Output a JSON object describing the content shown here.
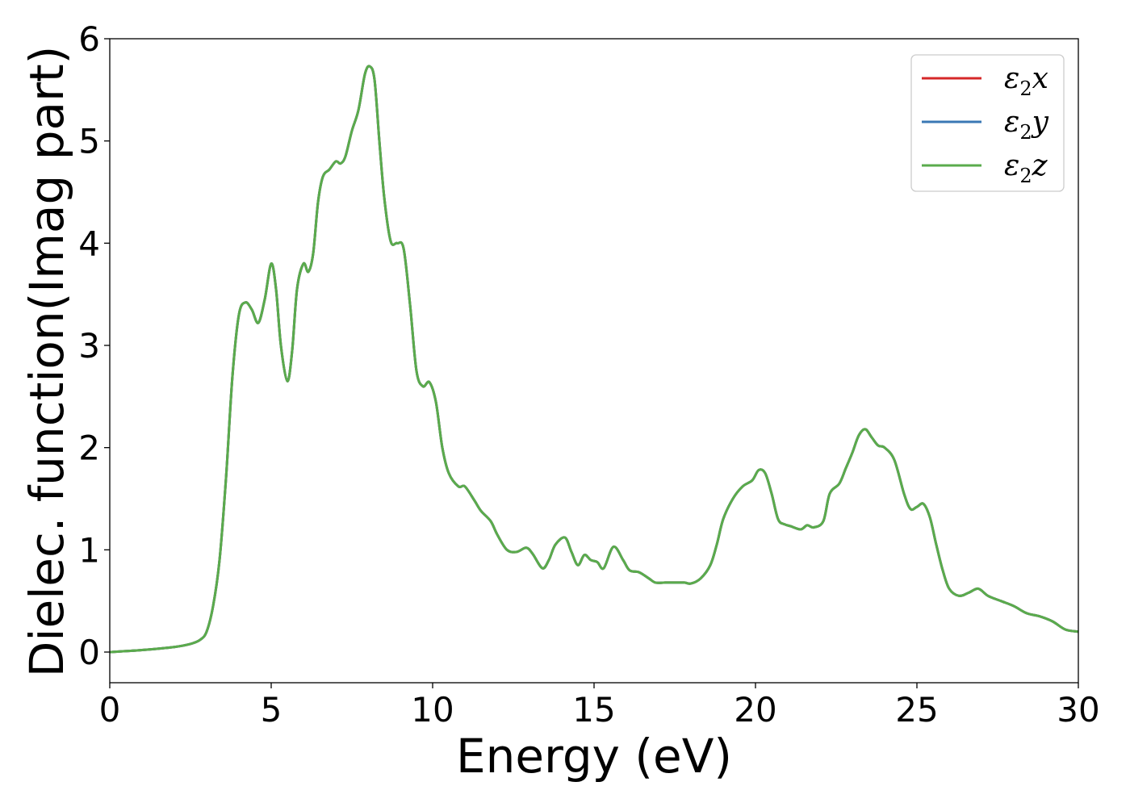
{
  "chart_data": {
    "type": "line",
    "title": "",
    "xlabel": "Energy (eV)",
    "ylabel": "Dielec. function(Imag part)",
    "xlim": [
      0,
      30
    ],
    "ylim": [
      -0.3,
      6.0
    ],
    "x_ticks": [
      0,
      5,
      10,
      15,
      20,
      25,
      30
    ],
    "y_ticks": [
      0,
      1,
      2,
      3,
      4,
      5,
      6
    ],
    "grid": false,
    "legend_position": "top-right",
    "legend_entries": [
      {
        "prefix": "ε",
        "sub": "2",
        "suffix": "x",
        "color": "#d62728"
      },
      {
        "prefix": "ε",
        "sub": "2",
        "suffix": "y",
        "color": "#3a78b5"
      },
      {
        "prefix": "ε",
        "sub": "2",
        "suffix": "z",
        "color": "#5aab4c"
      }
    ],
    "series": [
      {
        "name": "ε2x",
        "color": "#d62728"
      },
      {
        "name": "ε2y",
        "color": "#3a78b5"
      },
      {
        "name": "ε2z",
        "color": "#5aab4c"
      }
    ],
    "x": [
      0,
      1,
      2,
      2.5,
      2.8,
      3.0,
      3.2,
      3.4,
      3.6,
      3.8,
      4.0,
      4.2,
      4.4,
      4.6,
      4.8,
      5.0,
      5.15,
      5.3,
      5.5,
      5.65,
      5.8,
      6.0,
      6.15,
      6.3,
      6.45,
      6.6,
      6.8,
      7.0,
      7.15,
      7.3,
      7.5,
      7.7,
      7.9,
      8.05,
      8.2,
      8.35,
      8.5,
      8.7,
      8.9,
      9.1,
      9.3,
      9.5,
      9.7,
      9.9,
      10.1,
      10.3,
      10.5,
      10.8,
      11.0,
      11.3,
      11.5,
      11.8,
      12.0,
      12.3,
      12.6,
      12.9,
      13.1,
      13.4,
      13.6,
      13.8,
      14.1,
      14.3,
      14.5,
      14.7,
      14.9,
      15.1,
      15.3,
      15.6,
      15.9,
      16.1,
      16.4,
      16.7,
      16.9,
      17.2,
      17.5,
      17.8,
      18.0,
      18.3,
      18.6,
      18.8,
      19.0,
      19.3,
      19.6,
      19.9,
      20.1,
      20.3,
      20.5,
      20.7,
      20.9,
      21.1,
      21.4,
      21.6,
      21.8,
      22.1,
      22.3,
      22.6,
      22.8,
      23.0,
      23.2,
      23.4,
      23.6,
      23.8,
      24.0,
      24.3,
      24.6,
      24.8,
      25.0,
      25.2,
      25.4,
      25.6,
      25.8,
      26.0,
      26.3,
      26.6,
      26.9,
      27.2,
      27.6,
      28.0,
      28.4,
      28.8,
      29.2,
      29.6,
      30.0
    ],
    "y": [
      0.0,
      0.02,
      0.05,
      0.08,
      0.12,
      0.2,
      0.45,
      0.9,
      1.7,
      2.7,
      3.3,
      3.42,
      3.35,
      3.22,
      3.45,
      3.8,
      3.55,
      3.0,
      2.65,
      2.95,
      3.55,
      3.8,
      3.72,
      3.9,
      4.4,
      4.65,
      4.72,
      4.8,
      4.78,
      4.85,
      5.1,
      5.3,
      5.65,
      5.73,
      5.6,
      5.0,
      4.45,
      4.02,
      4.0,
      3.95,
      3.4,
      2.75,
      2.6,
      2.64,
      2.45,
      2.0,
      1.75,
      1.62,
      1.62,
      1.48,
      1.38,
      1.28,
      1.15,
      1.0,
      0.98,
      1.02,
      0.96,
      0.82,
      0.9,
      1.05,
      1.12,
      0.98,
      0.85,
      0.95,
      0.9,
      0.88,
      0.82,
      1.03,
      0.9,
      0.8,
      0.78,
      0.72,
      0.68,
      0.68,
      0.68,
      0.68,
      0.67,
      0.72,
      0.85,
      1.05,
      1.3,
      1.5,
      1.62,
      1.68,
      1.78,
      1.75,
      1.55,
      1.3,
      1.25,
      1.23,
      1.2,
      1.24,
      1.22,
      1.28,
      1.55,
      1.65,
      1.8,
      1.95,
      2.12,
      2.18,
      2.1,
      2.02,
      2.0,
      1.88,
      1.55,
      1.4,
      1.42,
      1.45,
      1.32,
      1.05,
      0.8,
      0.62,
      0.55,
      0.58,
      0.62,
      0.55,
      0.5,
      0.45,
      0.38,
      0.35,
      0.3,
      0.22,
      0.2
    ]
  }
}
